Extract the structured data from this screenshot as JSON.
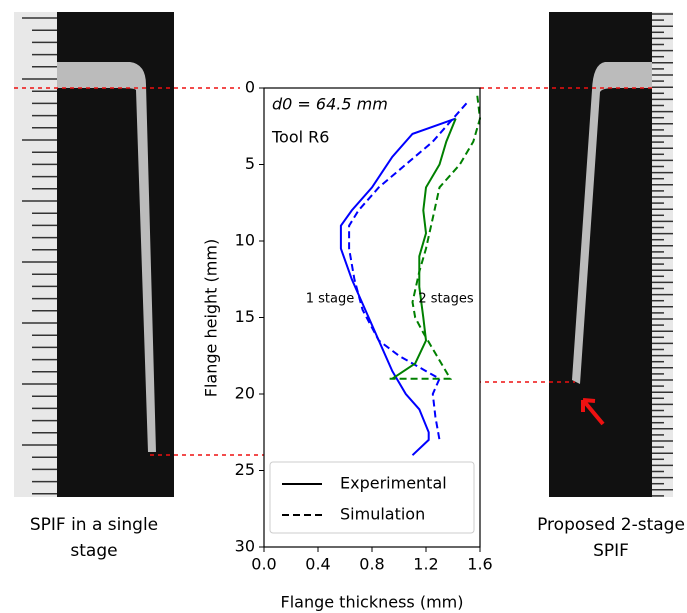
{
  "chart_data": {
    "type": "line",
    "xlabel": "Flange thickness (mm)",
    "ylabel": "Flange height (mm)",
    "xlim": [
      0,
      1.6
    ],
    "ylim": [
      30,
      0
    ],
    "xticks": [
      {
        "value": 0,
        "label": "0.0"
      },
      0.4,
      0.8,
      1.2,
      1.6
    ],
    "yticks": [
      0,
      5,
      10,
      15,
      20,
      25,
      30
    ],
    "series": [
      {
        "color": "#0000ff",
        "style": "solid",
        "x": [
          1.42,
          1.1,
          0.95,
          0.8,
          0.65,
          0.57,
          0.57,
          0.65,
          0.75,
          0.85,
          0.95,
          1.05,
          1.15,
          1.22,
          1.22,
          1.1
        ],
        "y": [
          2,
          3,
          4.5,
          6.5,
          8,
          9,
          10.5,
          12.5,
          14.5,
          16.5,
          18.5,
          20,
          21,
          22.5,
          23,
          24
        ]
      },
      {
        "color": "#0000ff",
        "style": "dashed",
        "x": [
          1.5,
          1.4,
          1.25,
          1.05,
          0.85,
          0.7,
          0.63,
          0.63,
          0.67,
          0.73,
          0.85,
          1.0,
          1.2,
          1.3,
          1.25,
          1.27,
          1.3
        ],
        "y": [
          1,
          2,
          3.5,
          5,
          6.5,
          8,
          9,
          10.5,
          12.5,
          14.5,
          16.5,
          17.5,
          18.5,
          19,
          20,
          21.5,
          23
        ]
      },
      {
        "color": "#008000",
        "style": "solid",
        "x": [
          1.42,
          1.35,
          1.3,
          1.2,
          1.18,
          1.2,
          1.15,
          1.15,
          1.18,
          1.2,
          1.12,
          0.95
        ],
        "y": [
          2,
          3.5,
          5,
          6.5,
          8,
          9.5,
          11,
          13,
          15,
          16.5,
          18,
          19
        ]
      },
      {
        "color": "#008000",
        "style": "dashed",
        "x": [
          1.58,
          1.6,
          1.55,
          1.45,
          1.3,
          1.25,
          1.2,
          1.15,
          1.1,
          1.12,
          1.18,
          1.28,
          1.38,
          0.93
        ],
        "y": [
          0.5,
          2,
          3.5,
          5,
          6.5,
          8.5,
          10.5,
          12,
          14,
          15,
          16,
          17.5,
          19,
          19
        ]
      }
    ],
    "legend": [
      {
        "label": "Experimental",
        "style": "solid"
      },
      {
        "label": "Simulation",
        "style": "dashed"
      }
    ],
    "annotations": [
      "d0 = 64.5 mm",
      "Tool R6",
      "1 stage",
      "2 stages"
    ],
    "captions": [
      "SPIF in a single stage",
      "Proposed 2-stage SPIF"
    ]
  }
}
